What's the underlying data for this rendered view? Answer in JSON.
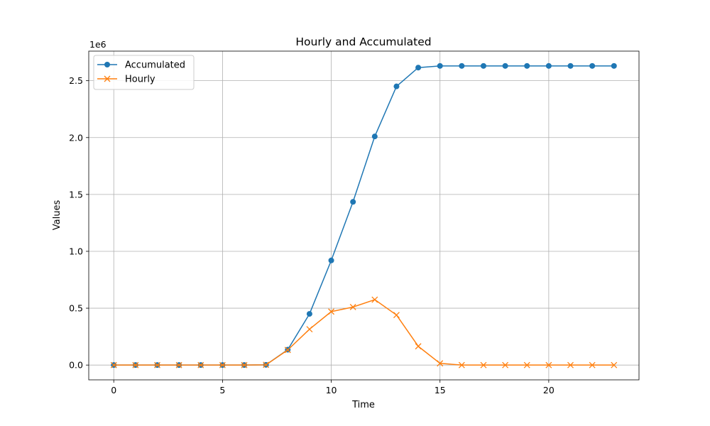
{
  "chart_data": {
    "type": "line",
    "title": "Hourly and Accumulated",
    "xlabel": "Time",
    "ylabel": "Values",
    "y_offset_label": "1e6",
    "xlim": [
      -1.15,
      24.15
    ],
    "ylim": [
      -0.13,
      2.76
    ],
    "x_ticks": [
      0,
      5,
      10,
      15,
      20
    ],
    "y_ticks": [
      0.0,
      0.5,
      1.0,
      1.5,
      2.0,
      2.5
    ],
    "y_tick_labels": [
      "0.0",
      "0.5",
      "1.0",
      "1.5",
      "2.0",
      "2.5"
    ],
    "grid": true,
    "legend_position": "upper left",
    "x": [
      0,
      1,
      2,
      3,
      4,
      5,
      6,
      7,
      8,
      9,
      10,
      11,
      12,
      13,
      14,
      15,
      16,
      17,
      18,
      19,
      20,
      21,
      22,
      23
    ],
    "series": [
      {
        "name": "Accumulated",
        "color": "#1f77b4",
        "marker": "circle",
        "values": [
          0,
          0,
          0,
          0,
          0,
          0,
          0,
          0.002,
          0.135,
          0.45,
          0.92,
          1.435,
          2.01,
          2.45,
          2.615,
          2.63,
          2.63,
          2.63,
          2.63,
          2.63,
          2.63,
          2.63,
          2.63,
          2.63
        ]
      },
      {
        "name": "Hourly",
        "color": "#ff7f0e",
        "marker": "x",
        "values": [
          0,
          0,
          0,
          0,
          0,
          0,
          0,
          0.002,
          0.133,
          0.315,
          0.47,
          0.51,
          0.575,
          0.44,
          0.165,
          0.015,
          0,
          0,
          0,
          0,
          0,
          0,
          0,
          0
        ]
      }
    ]
  }
}
